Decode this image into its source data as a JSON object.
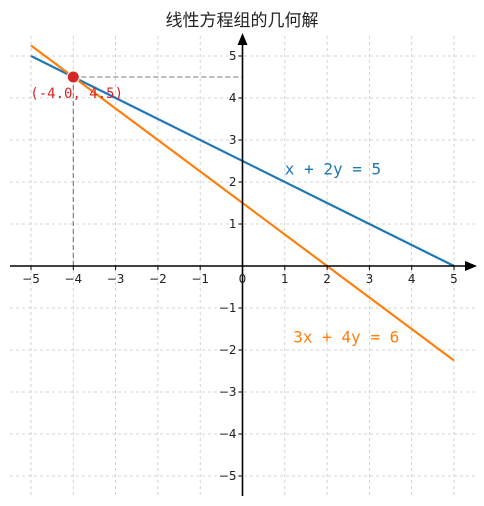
{
  "chart_data": {
    "type": "line",
    "title": "线性方程组的几何解",
    "xlim": [
      -5.5,
      5.5
    ],
    "ylim": [
      -5.5,
      5.5
    ],
    "grid": true,
    "grid_color": "#c8c8c8",
    "x_ticks": [
      -5,
      -4,
      -3,
      -2,
      -1,
      0,
      1,
      2,
      3,
      4,
      5
    ],
    "y_ticks": [
      -5,
      -4,
      -3,
      -2,
      -1,
      1,
      2,
      3,
      4,
      5
    ],
    "series": [
      {
        "name": "x + 2y = 5",
        "color": "#1f77b4",
        "x": [
          -5,
          5
        ],
        "y": [
          5,
          0
        ]
      },
      {
        "name": "3x + 4y = 6",
        "color": "#ff7f0e",
        "x": [
          -5,
          5
        ],
        "y": [
          5.25,
          -2.25
        ]
      }
    ],
    "equation_labels": [
      {
        "text": "x + 2y = 5",
        "color": "#1f77b4",
        "x": 1.0,
        "y": 2.3
      },
      {
        "text": "3x + 4y = 6",
        "color": "#ff7f0e",
        "x": 1.2,
        "y": -1.7
      }
    ],
    "intersection": {
      "x": -4.0,
      "y": 4.5,
      "label": "(-4.0, 4.5)",
      "color": "#d62728"
    }
  }
}
